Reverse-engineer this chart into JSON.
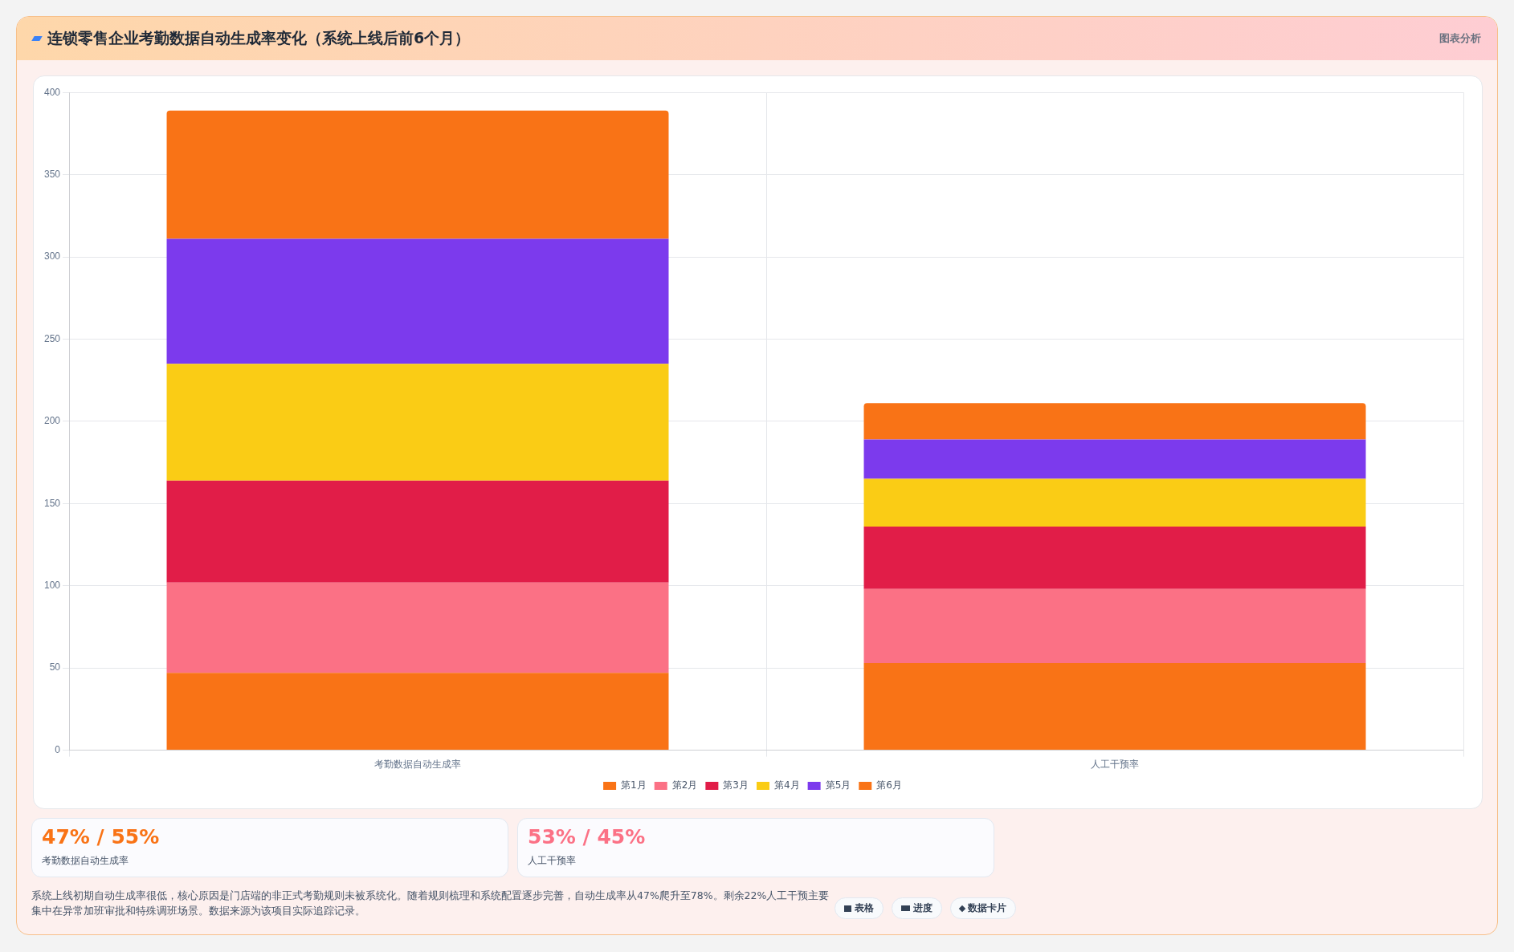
{
  "chart_data": {
    "type": "bar",
    "title": "连锁零售企业考勤数据自动生成率变化（系统上线后前6个月）",
    "categories": [
      "考勤数据自动生成率",
      "人工干预率"
    ],
    "stacked": true,
    "ylim": [
      0,
      400
    ],
    "yticks": [
      0,
      50,
      100,
      150,
      200,
      250,
      300,
      350,
      400
    ],
    "grid": true,
    "legend": "bottom",
    "series": [
      {
        "name": "第1月",
        "color": "#f97316",
        "values": [
          47,
          53
        ]
      },
      {
        "name": "第2月",
        "color": "#fb7185",
        "values": [
          55,
          45
        ]
      },
      {
        "name": "第3月",
        "color": "#e11d48",
        "values": [
          62,
          38
        ]
      },
      {
        "name": "第4月",
        "color": "#facc15",
        "values": [
          71,
          29
        ]
      },
      {
        "name": "第5月",
        "color": "#7c3aed",
        "values": [
          76,
          24
        ]
      },
      {
        "name": "第6月",
        "color": "#f97316",
        "values": [
          78,
          22
        ]
      }
    ],
    "annotations": [
      "图表分析",
      "47% / 55%",
      "考勤数据自动生成率",
      "53% / 45%",
      "人工干预率",
      "系统上线初期自动生成率很低，核心原因是门店端的非正式考勤规则未被系统化。随着规则梳理和系统配置逐步完善，自动生成率从47%爬升至78%。剩余22%人工干预主要集中在异常加班审批和特殊调班场景。数据来源为该项目实际追踪记录。",
      "表格",
      "进度",
      "数据卡片"
    ]
  }
}
